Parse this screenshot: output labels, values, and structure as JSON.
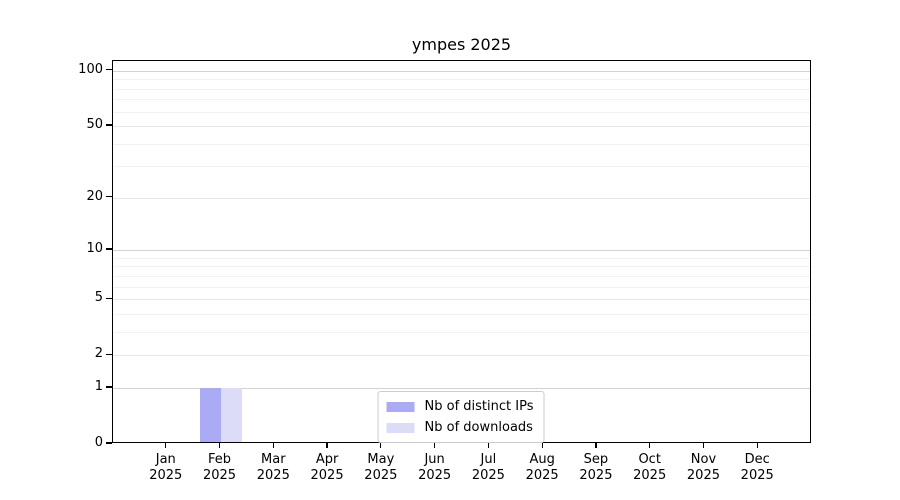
{
  "chart_data": {
    "type": "bar",
    "title": "ympes 2025",
    "categories": [
      "Jan",
      "Feb",
      "Mar",
      "Apr",
      "May",
      "Jun",
      "Jul",
      "Aug",
      "Sep",
      "Oct",
      "Nov",
      "Dec"
    ],
    "category_year": "2025",
    "series": [
      {
        "name": "Nb of distinct IPs",
        "color": "#aaaaf5",
        "values": [
          0,
          1,
          0,
          0,
          0,
          0,
          0,
          0,
          0,
          0,
          0,
          0
        ]
      },
      {
        "name": "Nb of downloads",
        "color": "#dcdcf8",
        "values": [
          0,
          1,
          0,
          0,
          0,
          0,
          0,
          0,
          0,
          0,
          0,
          0
        ]
      }
    ],
    "yscale": "log1p",
    "ylim": [
      0,
      113
    ],
    "yticks": [
      0,
      1,
      2,
      5,
      10,
      20,
      50,
      100
    ],
    "yticks_minor": [
      3,
      4,
      6,
      7,
      8,
      9,
      30,
      40,
      60,
      70,
      80,
      90
    ],
    "grid": true,
    "legend_position": "lower center",
    "colors": {
      "spine": "#000000",
      "grid_major": "#d2d2d2",
      "grid_mid": "#e7e7e7",
      "grid_minor": "#f2f2f2"
    }
  }
}
